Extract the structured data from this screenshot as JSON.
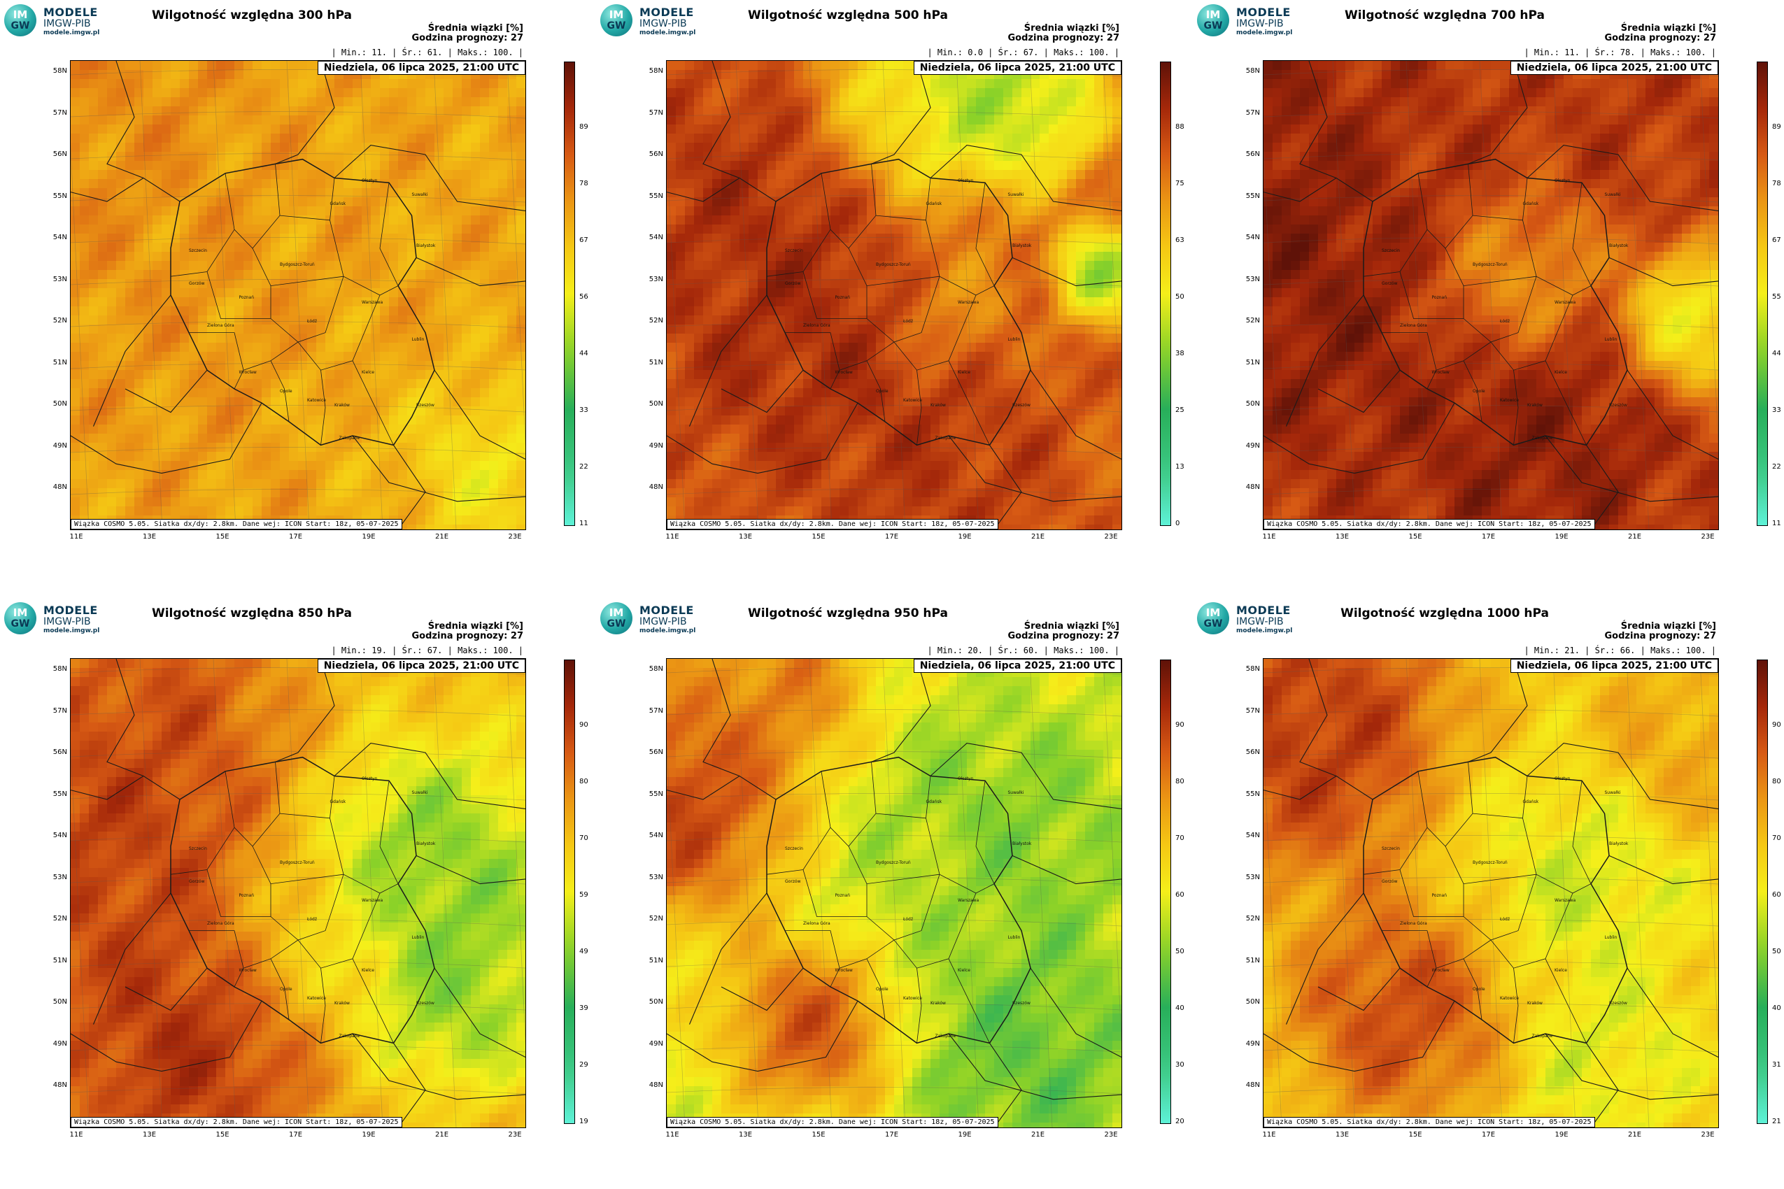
{
  "logo": {
    "badge_top": "IM",
    "badge_bottom": "GW",
    "line1": "MODELE",
    "line2": "IMGW-PIB",
    "line3": "modele.imgw.pl"
  },
  "header_info": {
    "line1": "Średnia wiązki [%]",
    "line2": "Godzina prognozy: 27"
  },
  "date_label": "Niedziela, 06 lipca 2025, 21:00 UTC",
  "footer": "Wiązka COSMO 5.05. Siatka dx/dy: 2.8km. Dane wej: ICON Start: 18z, 05-07-2025",
  "lat_labels": [
    "58N",
    "57N",
    "56N",
    "55N",
    "54N",
    "53N",
    "52N",
    "51N",
    "50N",
    "49N",
    "48N"
  ],
  "lon_labels": [
    "11E",
    "13E",
    "15E",
    "17E",
    "19E",
    "21E",
    "23E"
  ],
  "cities": [
    "Gdańsk",
    "Olsztyn",
    "Suwałki",
    "Szczecin",
    "Białystok",
    "Bydgoszcz-Toruń",
    "Gorzów",
    "Poznań",
    "Warszawa",
    "Zielona Góra",
    "Łódź",
    "Lublin",
    "Wrocław",
    "Kielce",
    "Opole",
    "Katowice",
    "Kraków",
    "Rzeszów",
    "Zakopane"
  ],
  "colors": {
    "dry": "#5ef2d7",
    "mid": "#f5ef1a",
    "wet": "#7a1608"
  },
  "panels": [
    {
      "title": "Wilgotność względna 300 hPa",
      "stats": "| Min.:   11. | Śr.:   61. | Maks.:   100. |",
      "min": "11.",
      "avg": "61.",
      "max": "100.",
      "cbar": [
        "89",
        "78",
        "67",
        "56",
        "44",
        "33",
        "22",
        "11"
      ]
    },
    {
      "title": "Wilgotność względna 500 hPa",
      "stats": "| Min.:   0.0 | Śr.:   67. | Maks.:   100. |",
      "min": "0.0",
      "avg": "67.",
      "max": "100.",
      "cbar": [
        "88",
        "75",
        "63",
        "50",
        "38",
        "25",
        "13",
        "0"
      ]
    },
    {
      "title": "Wilgotność względna 700 hPa",
      "stats": "| Min.:   11. | Śr.:   78. | Maks.:   100. |",
      "min": "11.",
      "avg": "78.",
      "max": "100.",
      "cbar": [
        "89",
        "78",
        "67",
        "55",
        "44",
        "33",
        "22",
        "11"
      ]
    },
    {
      "title": "Wilgotność względna 850 hPa",
      "stats": "| Min.:   19. | Śr.:   67. | Maks.:   100. |",
      "min": "19.",
      "avg": "67.",
      "max": "100.",
      "cbar": [
        "90",
        "80",
        "70",
        "59",
        "49",
        "39",
        "29",
        "19"
      ]
    },
    {
      "title": "Wilgotność względna 950 hPa",
      "stats": "| Min.:   20. | Śr.:   60. | Maks.:   100. |",
      "min": "20.",
      "avg": "60.",
      "max": "100.",
      "cbar": [
        "90",
        "80",
        "70",
        "60",
        "50",
        "40",
        "30",
        "20"
      ]
    },
    {
      "title": "Wilgotność względna 1000 hPa",
      "stats": "| Min.:   21. | Śr.:   66. | Maks.:   100. |",
      "min": "21.",
      "avg": "66.",
      "max": "100.",
      "cbar": [
        "90",
        "80",
        "70",
        "60",
        "50",
        "40",
        "31",
        "21"
      ]
    }
  ]
}
